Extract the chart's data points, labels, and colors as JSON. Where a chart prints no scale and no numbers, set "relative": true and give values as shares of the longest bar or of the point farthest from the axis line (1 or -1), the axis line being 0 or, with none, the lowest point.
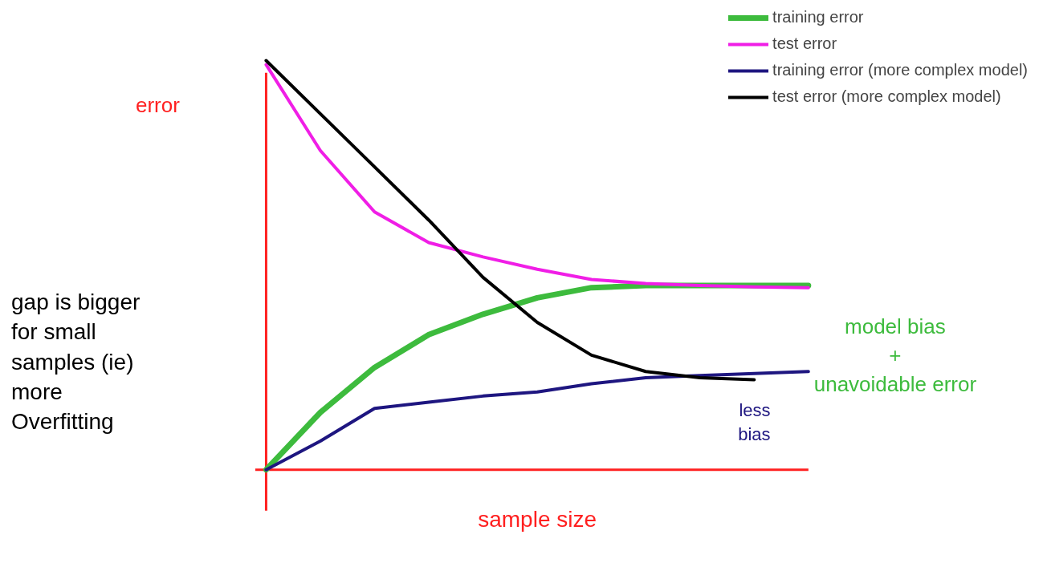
{
  "chart_data": {
    "type": "line",
    "relative": true,
    "xlabel": "sample size",
    "ylabel": "error",
    "legend": "top right",
    "marker": "none",
    "line_style": "solid",
    "categories": [
      null,
      null,
      null,
      null,
      null,
      null,
      null,
      null,
      null,
      null,
      null
    ],
    "annotations": [
      "gap is bigger for small samples (ie) more Overfitting",
      "model bias + unavoidable error",
      "less bias"
    ],
    "series": [
      {
        "name": "training error",
        "color": "#3dbb3d",
        "values": [
          0,
          0.14,
          0.25,
          0.33,
          0.38,
          0.42,
          0.445,
          0.45,
          0.45,
          0.45,
          0.45
        ]
      },
      {
        "name": "test error",
        "color": "#f01ee6",
        "values": [
          0.99,
          0.78,
          0.63,
          0.555,
          0.52,
          0.49,
          0.465,
          0.455,
          0.45,
          0.447,
          0.445
        ]
      },
      {
        "name": "training error (more complex model)",
        "color": "#1e1680",
        "values": [
          0,
          0.07,
          0.15,
          0.165,
          0.18,
          0.19,
          0.21,
          0.225,
          0.23,
          0.235,
          0.24
        ]
      },
      {
        "name": "test error (more complex model)",
        "color": "#000000",
        "values": [
          1.0,
          0.87,
          0.74,
          0.61,
          0.47,
          0.36,
          0.28,
          0.24,
          0.225,
          0.22,
          null
        ]
      }
    ]
  }
}
